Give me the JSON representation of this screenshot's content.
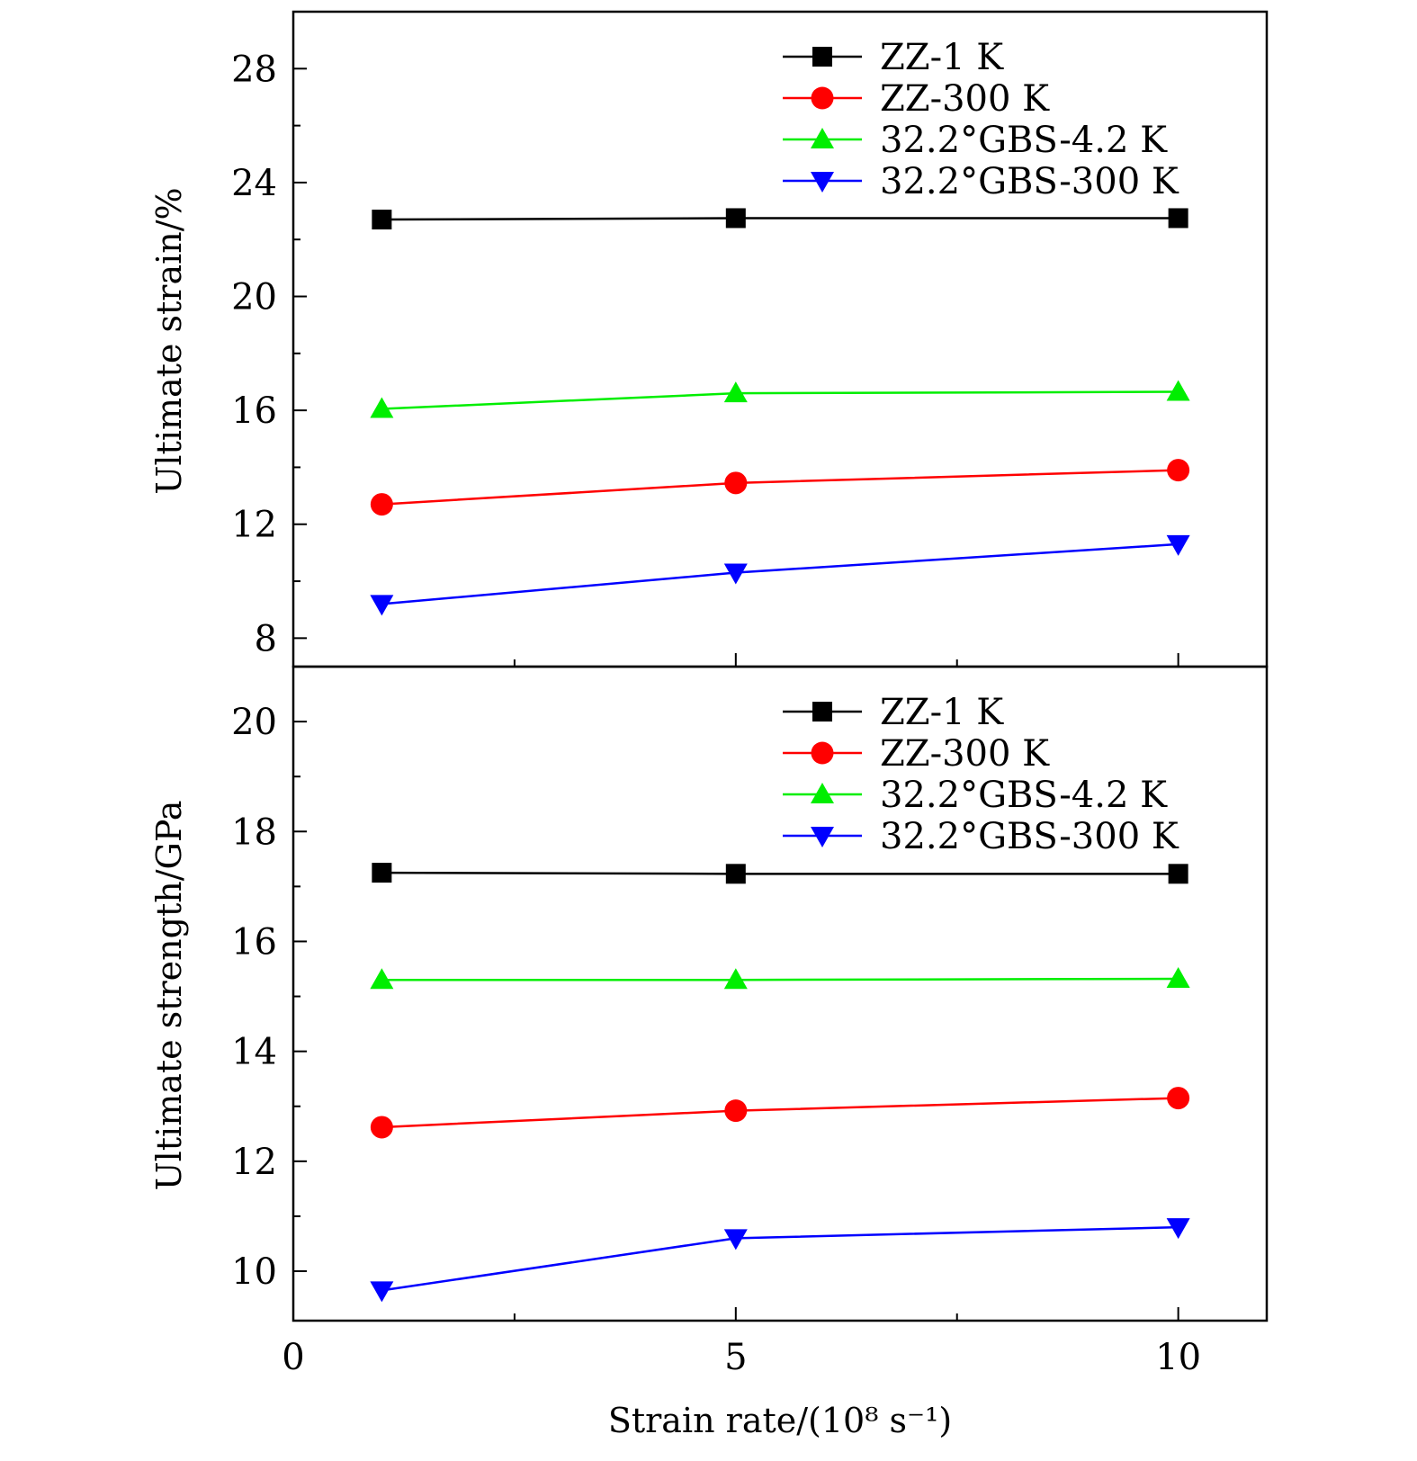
{
  "chart_data": [
    {
      "type": "line",
      "panel": "top",
      "x": [
        1,
        5,
        10
      ],
      "ylabel": "Ultimate strain/%",
      "ylim": [
        7,
        30
      ],
      "yticks": [
        8,
        12,
        16,
        20,
        24,
        28
      ],
      "ytick_labels": [
        "8",
        "12",
        "16",
        "20",
        "24",
        "28"
      ],
      "legend_position": "top-right",
      "series": [
        {
          "name": "ZZ-1 K",
          "color": "#000000",
          "marker": "square",
          "values": [
            22.7,
            22.75,
            22.75
          ]
        },
        {
          "name": "ZZ-300 K",
          "color": "#ff0000",
          "marker": "circle",
          "values": [
            12.7,
            13.45,
            13.9
          ]
        },
        {
          "name": "32.2°GBS-4.2 K",
          "color": "#00ee00",
          "marker": "triangle-up",
          "values": [
            16.05,
            16.6,
            16.65
          ]
        },
        {
          "name": "32.2°GBS-300 K",
          "color": "#0000ff",
          "marker": "triangle-down",
          "values": [
            9.2,
            10.3,
            11.3
          ]
        }
      ]
    },
    {
      "type": "line",
      "panel": "bottom",
      "x": [
        1,
        5,
        10
      ],
      "xlabel": "Strain rate/(10⁸ s⁻¹)",
      "ylabel": "Ultimate strength/GPa",
      "xlim": [
        0,
        11
      ],
      "xticks": [
        0,
        5,
        10
      ],
      "xtick_labels": [
        "0",
        "5",
        "10"
      ],
      "ylim": [
        9.1,
        21
      ],
      "yticks": [
        10,
        12,
        14,
        16,
        18,
        20
      ],
      "ytick_labels": [
        "10",
        "12",
        "14",
        "16",
        "18",
        "20"
      ],
      "legend_position": "top-right",
      "series": [
        {
          "name": "ZZ-1 K",
          "color": "#000000",
          "marker": "square",
          "values": [
            17.25,
            17.23,
            17.23
          ]
        },
        {
          "name": "ZZ-300 K",
          "color": "#ff0000",
          "marker": "circle",
          "values": [
            12.62,
            12.92,
            13.15
          ]
        },
        {
          "name": "32.2°GBS-4.2 K",
          "color": "#00ee00",
          "marker": "triangle-up",
          "values": [
            15.3,
            15.3,
            15.32
          ]
        },
        {
          "name": "32.2°GBS-300 K",
          "color": "#0000ff",
          "marker": "triangle-down",
          "values": [
            9.65,
            10.6,
            10.8
          ]
        }
      ]
    }
  ]
}
